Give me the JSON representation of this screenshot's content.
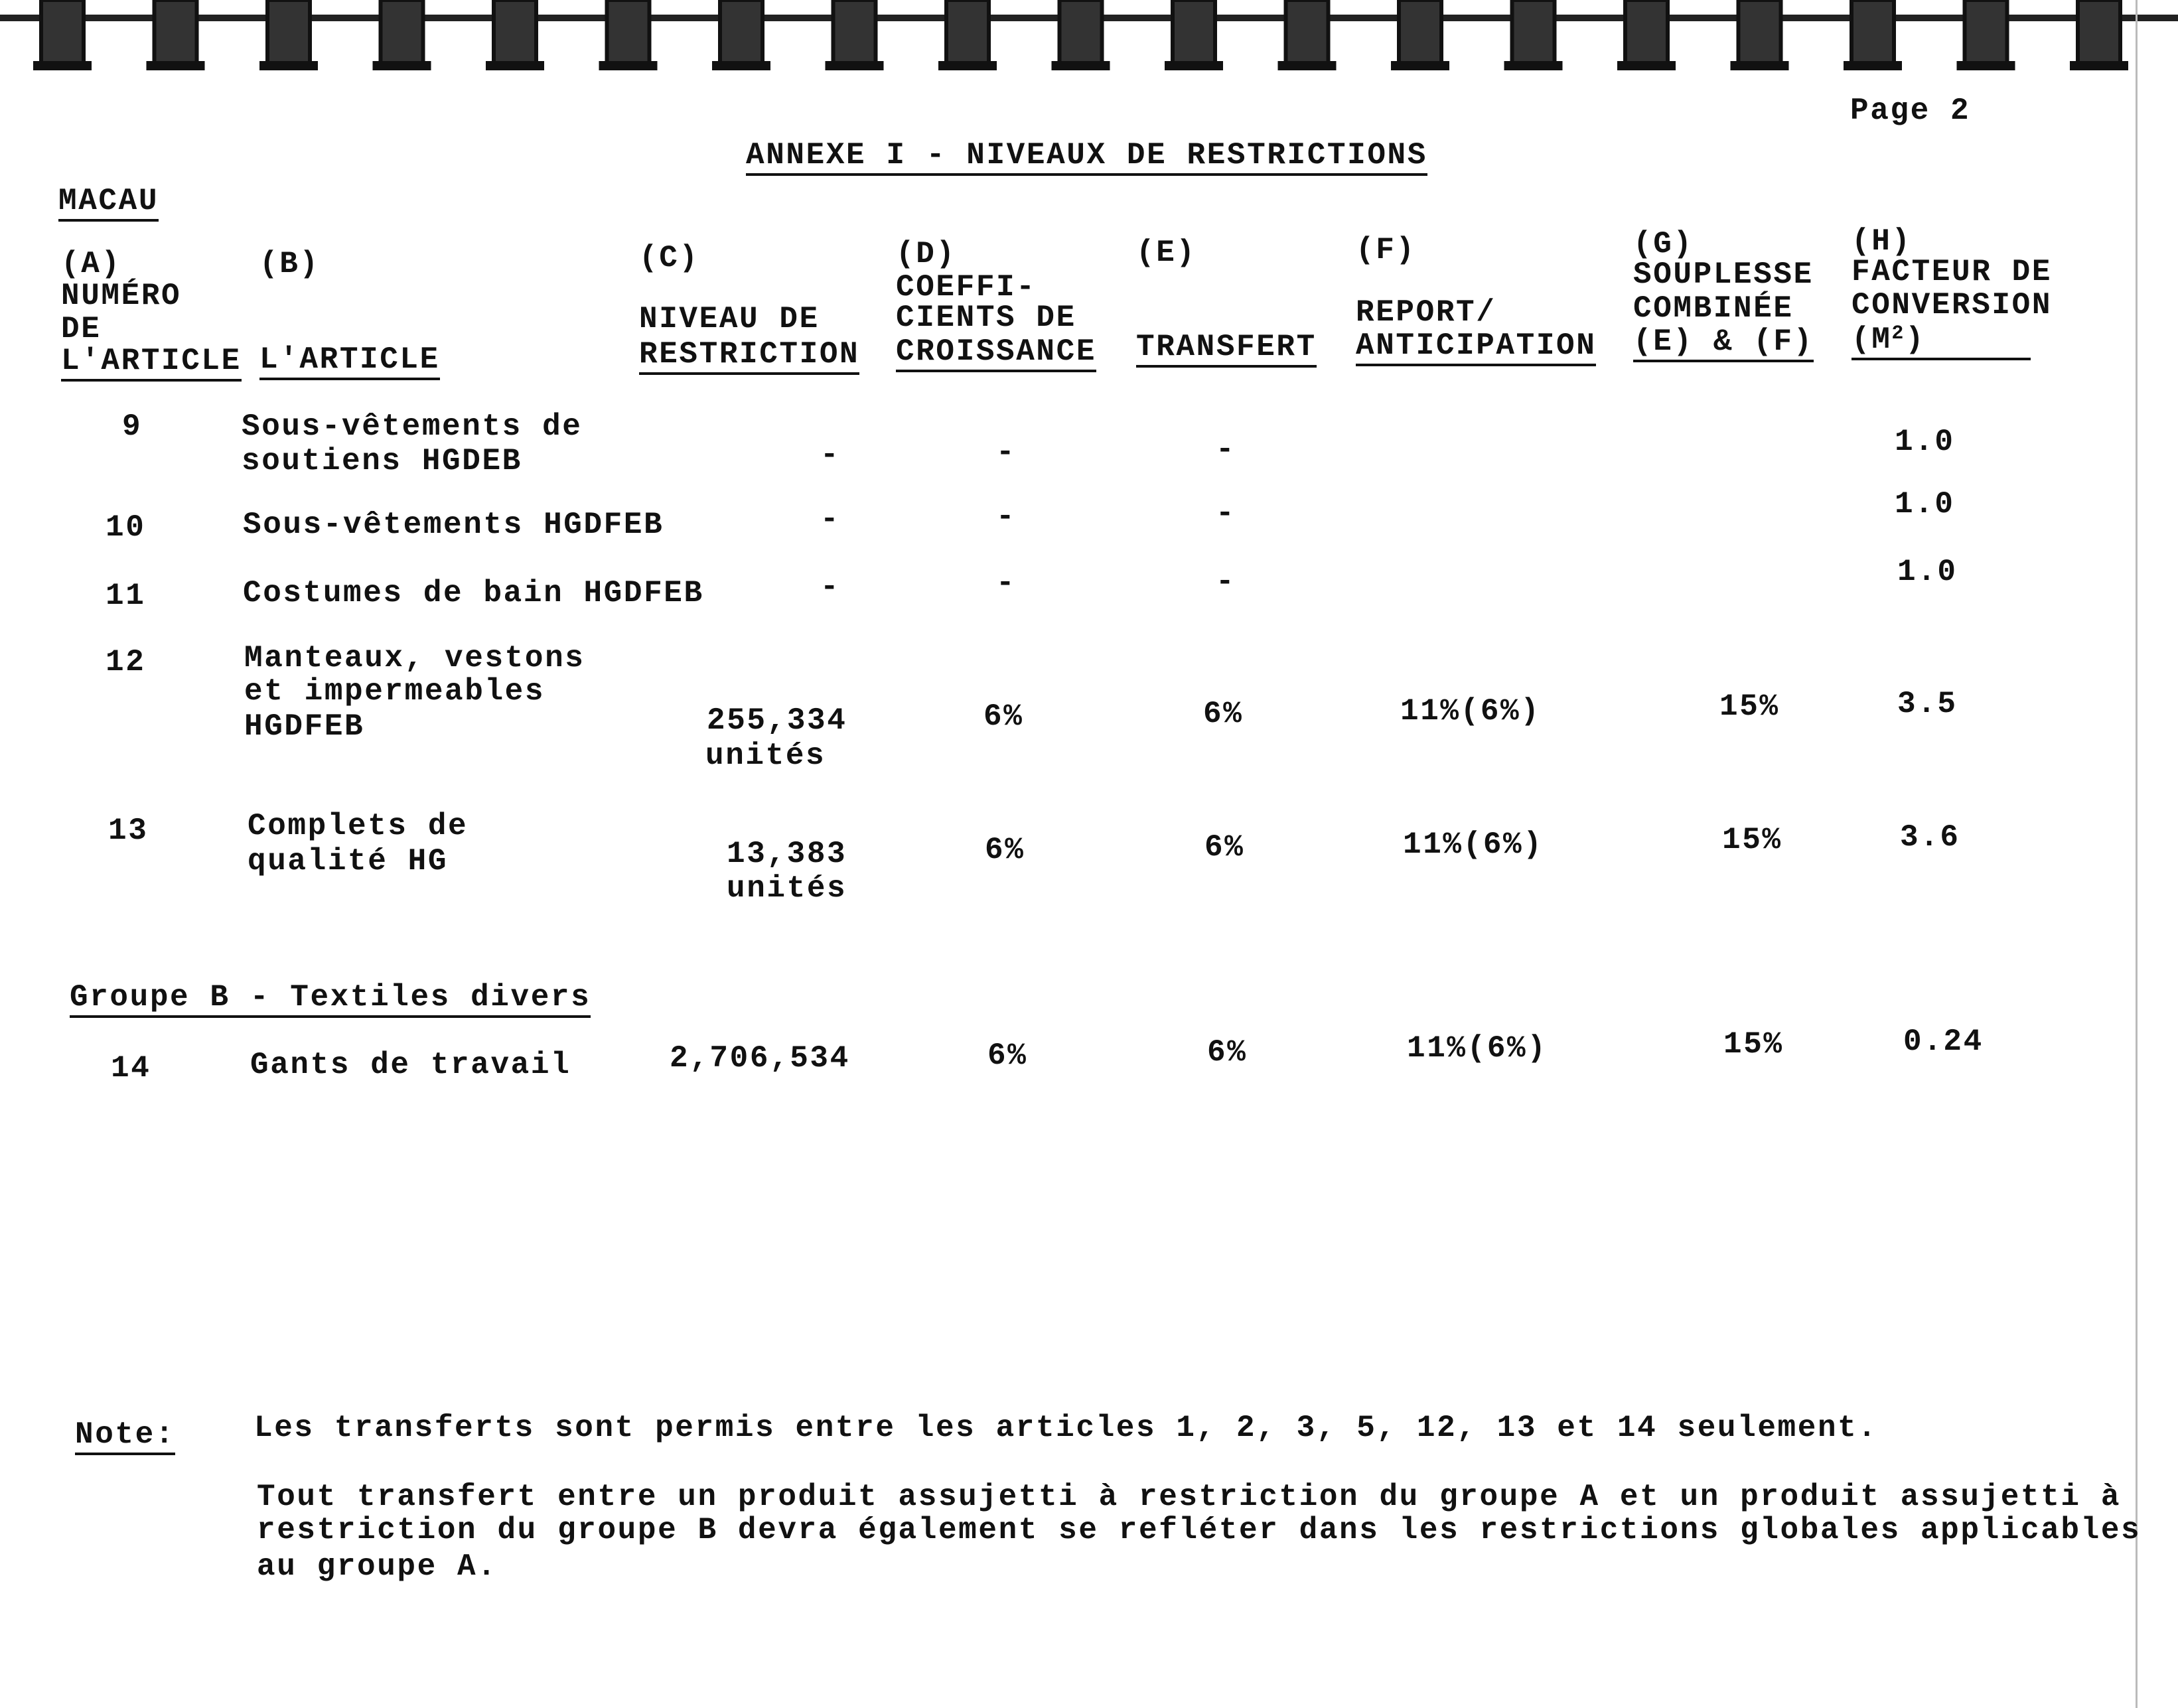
{
  "page_number": "Page 2",
  "title": "ANNEXE I - NIVEAUX DE RESTRICTIONS",
  "country": "MACAU",
  "headers": {
    "a": [
      "(A)",
      "NUMÉRO",
      "DE",
      "L'ARTICLE"
    ],
    "b": [
      "(B)",
      "L'ARTICLE"
    ],
    "c": [
      "(C)",
      "NIVEAU DE",
      "RESTRICTION"
    ],
    "d": [
      "(D)",
      "COEFFI-",
      "CIENTS DE",
      "CROISSANCE"
    ],
    "e": [
      "(E)",
      "TRANSFERT"
    ],
    "f": [
      "(F)",
      "REPORT/",
      "ANTICIPATION"
    ],
    "g": [
      "(G)",
      "SOUPLESSE",
      "COMBINÉE",
      "(E) & (F)"
    ],
    "h": [
      "(H)",
      "FACTEUR DE",
      "CONVERSION",
      "(M",
      "2",
      ")"
    ]
  },
  "rows": [
    {
      "num": "9",
      "desc": [
        "Sous-vêtements de",
        "soutiens HGDEB"
      ],
      "c": "-",
      "d": "-",
      "e": "-",
      "h": "1.0"
    },
    {
      "num": "10",
      "desc": [
        "Sous-vêtements HGDFEB"
      ],
      "c": "-",
      "d": "-",
      "e": "-",
      "h": "1.0"
    },
    {
      "num": "11",
      "desc": [
        "Costumes de bain HGDFEB"
      ],
      "c": "-",
      "d": "-",
      "e": "-",
      "h": "1.0"
    },
    {
      "num": "12",
      "desc": [
        "Manteaux, vestons",
        "et impermeables",
        "HGDFEB"
      ],
      "c": [
        "255,334",
        "unités"
      ],
      "d": "6%",
      "e": "6%",
      "f": "11%(6%)",
      "g": "15%",
      "h": "3.5"
    },
    {
      "num": "13",
      "desc": [
        "Complets de",
        "qualité HG"
      ],
      "c": [
        "13,383",
        "unités"
      ],
      "d": "6%",
      "e": "6%",
      "f": "11%(6%)",
      "g": "15%",
      "h": "3.6"
    },
    {
      "num": "14",
      "desc": [
        "Gants de travail"
      ],
      "c": "2,706,534",
      "d": "6%",
      "e": "6%",
      "f": "11%(6%)",
      "g": "15%",
      "h": "0.24"
    }
  ],
  "group_b": "Groupe B - Textiles divers",
  "note": {
    "label": "Note:",
    "line1": "Les transferts sont permis entre les articles 1, 2, 3, 5, 12, 13 et 14 seulement.",
    "para": [
      "Tout transfert entre un produit assujetti à restriction du groupe A et un produit assujetti à",
      "restriction du groupe B devra également se refléter dans les restrictions globales applicables",
      "au groupe A."
    ]
  }
}
